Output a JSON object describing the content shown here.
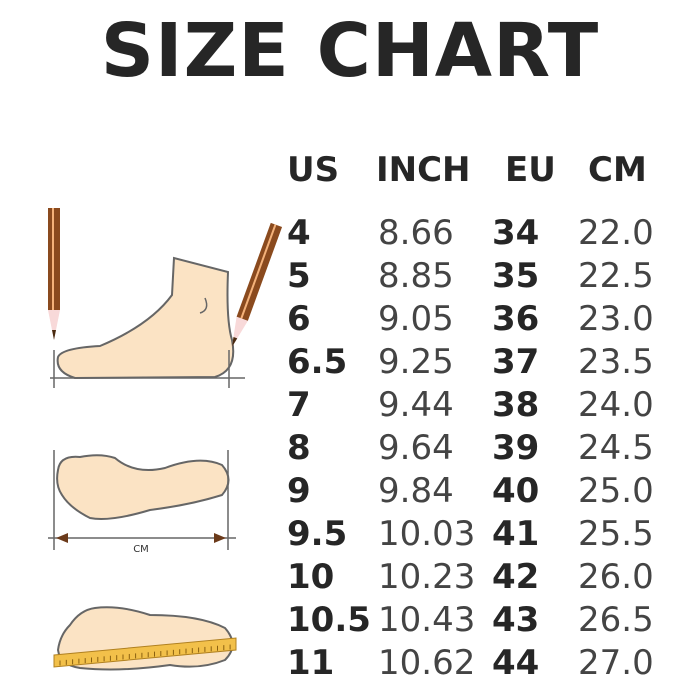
{
  "title": "SIZE CHART",
  "columns": [
    "US",
    "INCH",
    "EU",
    "CM"
  ],
  "rows": [
    [
      "4",
      "8.66",
      "34",
      "22.0"
    ],
    [
      "5",
      "8.85",
      "35",
      "22.5"
    ],
    [
      "6",
      "9.05",
      "36",
      "23.0"
    ],
    [
      "6.5",
      "9.25",
      "37",
      "23.5"
    ],
    [
      "7",
      "9.44",
      "38",
      "24.0"
    ],
    [
      "8",
      "9.64",
      "39",
      "24.5"
    ],
    [
      "9",
      "9.84",
      "40",
      "25.0"
    ],
    [
      "9.5",
      "10.03",
      "41",
      "25.5"
    ],
    [
      "10",
      "10.23",
      "42",
      "26.0"
    ],
    [
      "10.5",
      "10.43",
      "43",
      "26.5"
    ],
    [
      "11",
      "10.62",
      "44",
      "27.0"
    ]
  ],
  "illustration": {
    "measure_label": "CM"
  },
  "colors": {
    "skin": "#fbe3c4",
    "outline": "#666666",
    "pencil": "#8a4a1e",
    "ruler": "#f2c04a"
  }
}
